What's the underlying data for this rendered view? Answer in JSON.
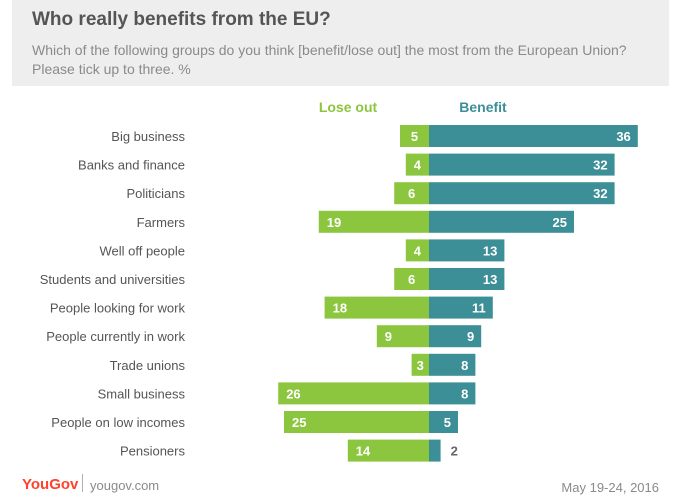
{
  "header": {
    "title": "Who really benefits from the EU?",
    "subtitle": "Which of the following groups do you think [benefit/lose out] the most from the European Union? Please tick up to three. %"
  },
  "chart_data": {
    "type": "bar",
    "orientation": "diverging-horizontal",
    "categories": [
      "Big business",
      "Banks and finance",
      "Politicians",
      "Farmers",
      "Well off people",
      "Students and universities",
      "People looking for work",
      "People currently in work",
      "Trade unions",
      "Small business",
      "People on low incomes",
      "Pensioners"
    ],
    "series": [
      {
        "name": "Lose out",
        "color": "#8cc63f",
        "values": [
          5,
          4,
          6,
          19,
          4,
          6,
          18,
          9,
          3,
          26,
          25,
          14
        ]
      },
      {
        "name": "Benefit",
        "color": "#3d8f97",
        "values": [
          36,
          32,
          32,
          25,
          13,
          13,
          11,
          9,
          8,
          8,
          5,
          2
        ]
      }
    ]
  },
  "footer": {
    "brand": "YouGov",
    "site": "yougov.com",
    "date": "May 19-24, 2016"
  }
}
